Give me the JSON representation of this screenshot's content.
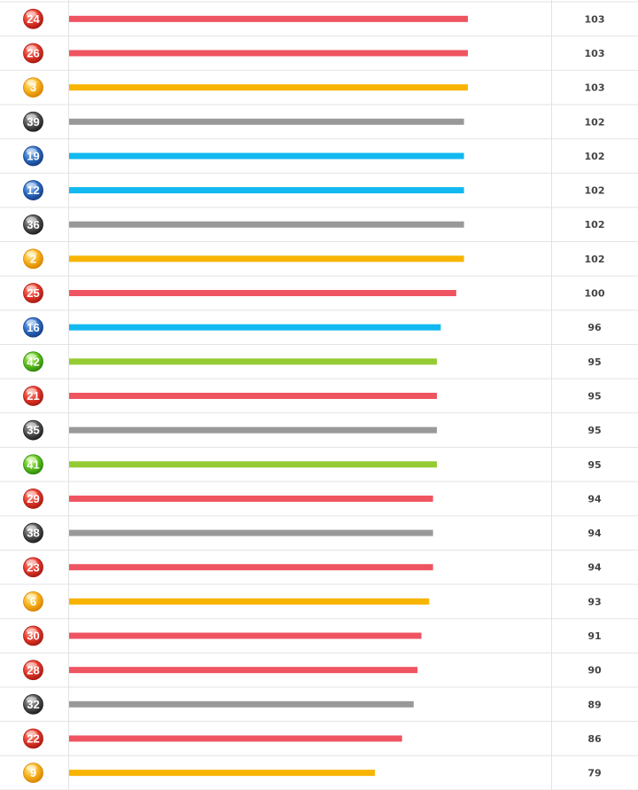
{
  "chart_data": {
    "type": "bar",
    "orientation": "horizontal",
    "categories": [
      "24",
      "26",
      "3",
      "39",
      "19",
      "12",
      "36",
      "2",
      "25",
      "16",
      "42",
      "21",
      "35",
      "41",
      "29",
      "38",
      "23",
      "6",
      "30",
      "28",
      "32",
      "22",
      "9"
    ],
    "values": [
      103,
      103,
      103,
      102,
      102,
      102,
      102,
      102,
      100,
      96,
      95,
      95,
      95,
      95,
      94,
      94,
      94,
      93,
      91,
      90,
      89,
      86,
      79
    ],
    "ball_colors": [
      "red",
      "red",
      "yellow",
      "gray",
      "blue",
      "blue",
      "gray",
      "yellow",
      "red",
      "blue",
      "green",
      "red",
      "gray",
      "green",
      "red",
      "gray",
      "red",
      "yellow",
      "red",
      "red",
      "gray",
      "red",
      "yellow"
    ],
    "xlim": [
      0,
      103
    ],
    "grid": true,
    "title": "",
    "xlabel": "",
    "ylabel": ""
  },
  "colors": {
    "red": "#ef5461",
    "yellow": "#f8b400",
    "gray": "#999999",
    "blue": "#12b8f0",
    "green": "#95cb33",
    "grid": "#e3e3e3",
    "count_text": "#444444"
  }
}
